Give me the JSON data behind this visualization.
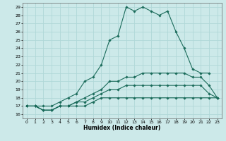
{
  "xlabel": "Humidex (Indice chaleur)",
  "xlim": [
    -0.5,
    23.5
  ],
  "ylim": [
    15.5,
    29.5
  ],
  "yticks": [
    16,
    17,
    18,
    19,
    20,
    21,
    22,
    23,
    24,
    25,
    26,
    27,
    28,
    29
  ],
  "xticks": [
    0,
    1,
    2,
    3,
    4,
    5,
    6,
    7,
    8,
    9,
    10,
    11,
    12,
    13,
    14,
    15,
    16,
    17,
    18,
    19,
    20,
    21,
    22,
    23
  ],
  "bg_color": "#cce9e9",
  "grid_color": "#b0d8d8",
  "line_color": "#1a6b5a",
  "lines": [
    [
      [
        0,
        17
      ],
      [
        1,
        17
      ],
      [
        2,
        17
      ],
      [
        3,
        17
      ],
      [
        4,
        17.5
      ],
      [
        5,
        18
      ],
      [
        6,
        18.5
      ],
      [
        7,
        20
      ],
      [
        8,
        20.5
      ],
      [
        9,
        22
      ],
      [
        10,
        25
      ],
      [
        11,
        25.5
      ],
      [
        12,
        29
      ],
      [
        13,
        28.5
      ],
      [
        14,
        29
      ],
      [
        15,
        28.5
      ],
      [
        16,
        28
      ],
      [
        17,
        28.5
      ],
      [
        18,
        26
      ],
      [
        19,
        24
      ],
      [
        20,
        21.5
      ],
      [
        21,
        21
      ],
      [
        22,
        21
      ]
    ],
    [
      [
        0,
        17
      ],
      [
        1,
        17
      ],
      [
        2,
        16.5
      ],
      [
        3,
        16.5
      ],
      [
        4,
        17
      ],
      [
        5,
        17
      ],
      [
        6,
        17.5
      ],
      [
        7,
        18
      ],
      [
        8,
        18.5
      ],
      [
        9,
        19
      ],
      [
        10,
        20
      ],
      [
        11,
        20
      ],
      [
        12,
        20.5
      ],
      [
        13,
        20.5
      ],
      [
        14,
        21
      ],
      [
        15,
        21
      ],
      [
        16,
        21
      ],
      [
        17,
        21
      ],
      [
        18,
        21
      ],
      [
        19,
        21
      ],
      [
        20,
        20.5
      ],
      [
        21,
        20.5
      ],
      [
        22,
        19.5
      ],
      [
        23,
        18
      ]
    ],
    [
      [
        0,
        17
      ],
      [
        1,
        17
      ],
      [
        2,
        16.5
      ],
      [
        3,
        16.5
      ],
      [
        4,
        17
      ],
      [
        5,
        17
      ],
      [
        6,
        17.5
      ],
      [
        7,
        17.5
      ],
      [
        8,
        18
      ],
      [
        9,
        18.5
      ],
      [
        10,
        19
      ],
      [
        11,
        19
      ],
      [
        12,
        19.5
      ],
      [
        13,
        19.5
      ],
      [
        14,
        19.5
      ],
      [
        15,
        19.5
      ],
      [
        16,
        19.5
      ],
      [
        17,
        19.5
      ],
      [
        18,
        19.5
      ],
      [
        19,
        19.5
      ],
      [
        20,
        19.5
      ],
      [
        21,
        19.5
      ],
      [
        22,
        18.5
      ],
      [
        23,
        18
      ]
    ],
    [
      [
        0,
        17
      ],
      [
        1,
        17
      ],
      [
        2,
        16.5
      ],
      [
        3,
        16.5
      ],
      [
        4,
        17
      ],
      [
        5,
        17
      ],
      [
        6,
        17
      ],
      [
        7,
        17
      ],
      [
        8,
        17.5
      ],
      [
        9,
        18
      ],
      [
        10,
        18
      ],
      [
        11,
        18
      ],
      [
        12,
        18
      ],
      [
        13,
        18
      ],
      [
        14,
        18
      ],
      [
        15,
        18
      ],
      [
        16,
        18
      ],
      [
        17,
        18
      ],
      [
        18,
        18
      ],
      [
        19,
        18
      ],
      [
        20,
        18
      ],
      [
        21,
        18
      ],
      [
        22,
        18
      ],
      [
        23,
        18
      ]
    ]
  ]
}
